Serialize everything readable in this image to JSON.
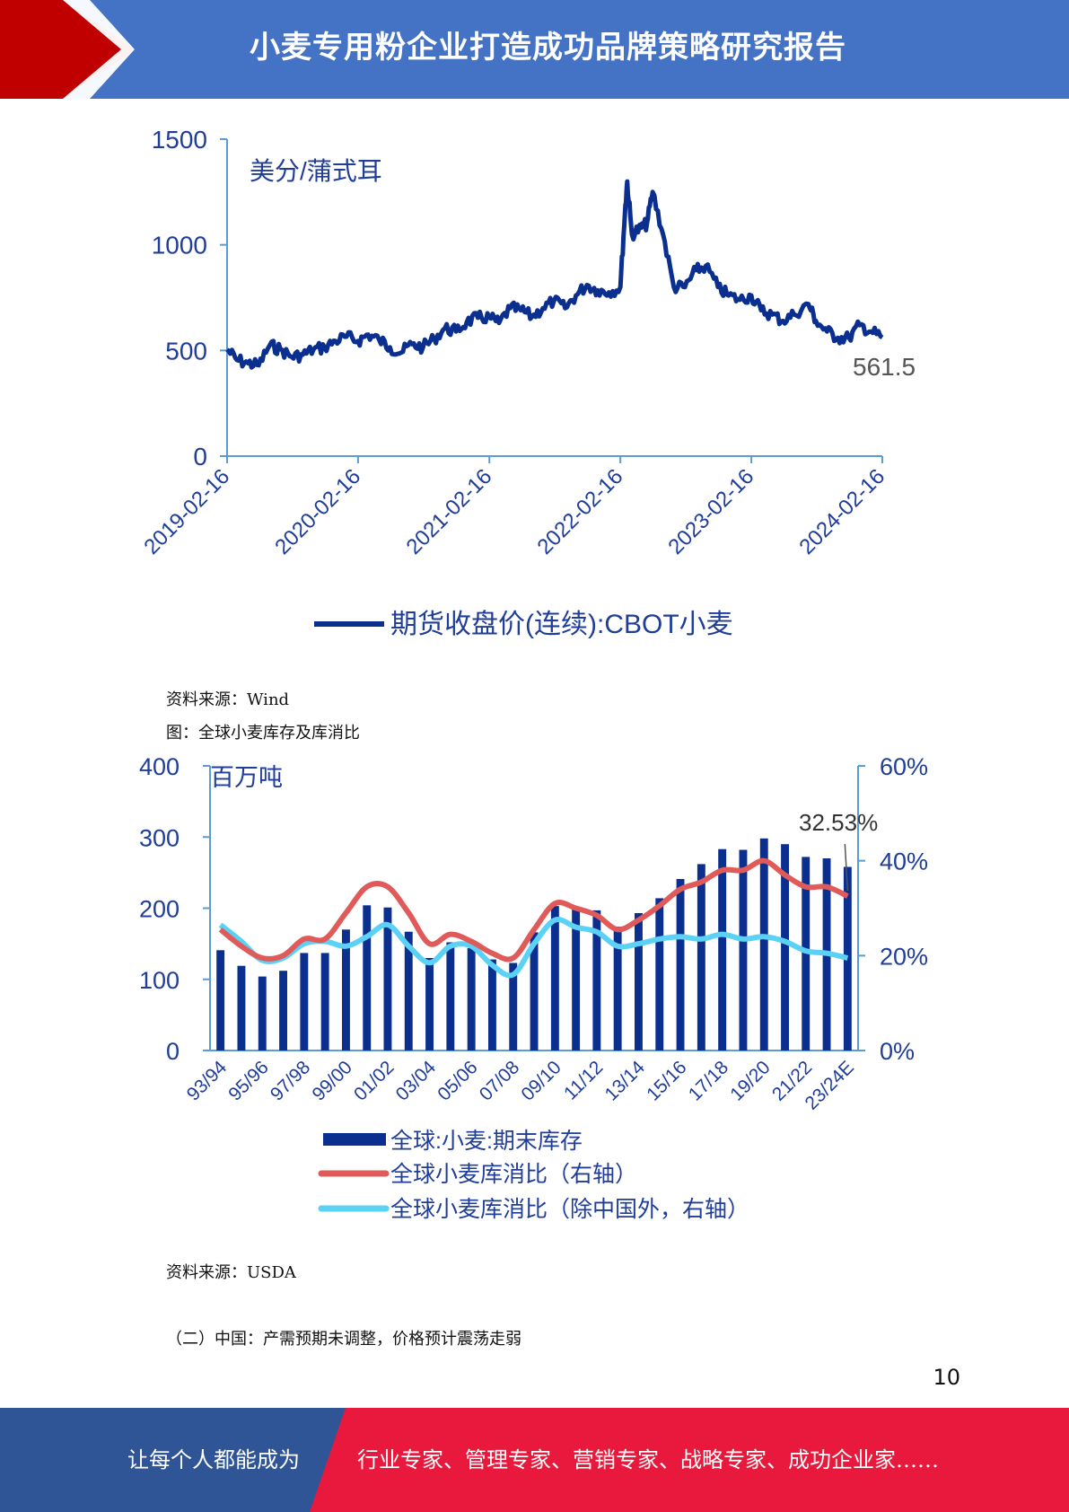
{
  "header": {
    "title": "小麦专用粉企业打造成功品牌策略研究报告"
  },
  "chart1": {
    "caption_source": "资料来源：Wind",
    "chart_data": {
      "type": "line",
      "unit_label": "美分/蒲式耳",
      "x_ticks": [
        "2019-02-16",
        "2020-02-16",
        "2021-02-16",
        "2022-02-16",
        "2023-02-16",
        "2024-02-16"
      ],
      "ylim": [
        0,
        1500
      ],
      "y_ticks": [
        0,
        500,
        1000,
        1500
      ],
      "last_value_label": "561.5",
      "series": [
        {
          "name": "期货收盘价(连续):CBOT小麦",
          "points": [
            [
              "2019-02-16",
              505
            ],
            [
              "2019-03-15",
              455
            ],
            [
              "2019-04-15",
              440
            ],
            [
              "2019-05-15",
              430
            ],
            [
              "2019-06-15",
              525
            ],
            [
              "2019-07-15",
              505
            ],
            [
              "2019-08-15",
              470
            ],
            [
              "2019-09-15",
              480
            ],
            [
              "2019-10-15",
              505
            ],
            [
              "2019-11-15",
              515
            ],
            [
              "2019-12-15",
              545
            ],
            [
              "2020-01-15",
              565
            ],
            [
              "2020-02-16",
              545
            ],
            [
              "2020-03-15",
              575
            ],
            [
              "2020-04-15",
              550
            ],
            [
              "2020-05-15",
              515
            ],
            [
              "2020-06-15",
              490
            ],
            [
              "2020-07-15",
              530
            ],
            [
              "2020-08-15",
              515
            ],
            [
              "2020-09-15",
              555
            ],
            [
              "2020-10-15",
              605
            ],
            [
              "2020-11-15",
              590
            ],
            [
              "2020-12-15",
              635
            ],
            [
              "2021-01-15",
              655
            ],
            [
              "2021-02-16",
              655
            ],
            [
              "2021-03-15",
              630
            ],
            [
              "2021-04-15",
              700
            ],
            [
              "2021-05-15",
              690
            ],
            [
              "2021-06-15",
              660
            ],
            [
              "2021-07-15",
              700
            ],
            [
              "2021-08-15",
              735
            ],
            [
              "2021-09-15",
              700
            ],
            [
              "2021-10-15",
              760
            ],
            [
              "2021-11-15",
              810
            ],
            [
              "2021-12-15",
              785
            ],
            [
              "2022-01-15",
              775
            ],
            [
              "2022-02-16",
              800
            ],
            [
              "2022-03-01",
              1160
            ],
            [
              "2022-03-07",
              1300
            ],
            [
              "2022-03-20",
              1050
            ],
            [
              "2022-04-15",
              1080
            ],
            [
              "2022-05-01",
              1100
            ],
            [
              "2022-05-17",
              1250
            ],
            [
              "2022-06-15",
              1050
            ],
            [
              "2022-07-15",
              800
            ],
            [
              "2022-08-15",
              800
            ],
            [
              "2022-09-15",
              880
            ],
            [
              "2022-10-12",
              900
            ],
            [
              "2022-11-15",
              800
            ],
            [
              "2022-12-15",
              760
            ],
            [
              "2023-01-15",
              740
            ],
            [
              "2023-02-16",
              760
            ],
            [
              "2023-03-15",
              690
            ],
            [
              "2023-04-15",
              670
            ],
            [
              "2023-05-15",
              640
            ],
            [
              "2023-06-15",
              670
            ],
            [
              "2023-07-25",
              720
            ],
            [
              "2023-08-15",
              640
            ],
            [
              "2023-09-15",
              590
            ],
            [
              "2023-10-15",
              560
            ],
            [
              "2023-11-15",
              560
            ],
            [
              "2023-12-15",
              620
            ],
            [
              "2024-01-15",
              590
            ],
            [
              "2024-02-16",
              561.5
            ]
          ]
        }
      ]
    }
  },
  "chart2": {
    "title": "图：全球小麦库存及库消比",
    "caption_source": "资料来源：USDA",
    "chart_data": {
      "type": "bar",
      "left_unit_label": "百万吨",
      "ylim_left": [
        0,
        400
      ],
      "y_ticks_left": [
        0,
        100,
        200,
        300,
        400
      ],
      "ylim_right": [
        0,
        60
      ],
      "y_ticks_right": [
        "0%",
        "20%",
        "40%",
        "60%"
      ],
      "annotation": "32.53%",
      "categories": [
        "93/94",
        "94/95",
        "95/96",
        "96/97",
        "97/98",
        "98/99",
        "99/00",
        "00/01",
        "01/02",
        "02/03",
        "03/04",
        "04/05",
        "05/06",
        "06/07",
        "07/08",
        "08/09",
        "09/10",
        "10/11",
        "11/12",
        "12/13",
        "13/14",
        "14/15",
        "15/16",
        "16/17",
        "17/18",
        "18/19",
        "19/20",
        "20/21",
        "21/22",
        "22/23",
        "23/24E"
      ],
      "x_tick_labels": [
        "93/94",
        "95/96",
        "97/98",
        "99/00",
        "01/02",
        "03/04",
        "05/06",
        "07/08",
        "09/10",
        "11/12",
        "13/14",
        "15/16",
        "17/18",
        "19/20",
        "21/22",
        "23/24E"
      ],
      "series": [
        {
          "name": "全球:小麦:期末库存",
          "kind": "bar",
          "values": [
            141,
            119,
            104,
            112,
            137,
            137,
            170,
            204,
            201,
            167,
            130,
            152,
            144,
            128,
            123,
            166,
            203,
            199,
            197,
            174,
            193,
            214,
            241,
            262,
            283,
            282,
            298,
            290,
            272,
            270,
            258
          ]
        },
        {
          "name": "全球小麦库消比（右轴）",
          "kind": "line",
          "axis": "right",
          "values": [
            25.5,
            22.0,
            19.5,
            20.0,
            23.5,
            23.5,
            29.0,
            34.5,
            34.5,
            29.0,
            22.5,
            24.5,
            23.0,
            20.5,
            19.5,
            25.5,
            31.0,
            30.0,
            28.5,
            25.5,
            27.5,
            30.5,
            34.0,
            35.5,
            38.0,
            38.0,
            40.0,
            37.0,
            34.5,
            34.5,
            32.53
          ]
        },
        {
          "name": "全球小麦库消比（除中国外，右轴）",
          "kind": "line",
          "axis": "right",
          "values": [
            26.5,
            23.0,
            19.0,
            19.5,
            22.5,
            23.0,
            22.0,
            24.0,
            26.5,
            22.0,
            18.5,
            22.0,
            22.0,
            18.0,
            16.0,
            22.5,
            27.5,
            26.0,
            25.0,
            22.0,
            22.5,
            23.5,
            24.0,
            23.5,
            24.5,
            23.5,
            24.0,
            23.0,
            21.0,
            20.5,
            19.5
          ]
        }
      ]
    }
  },
  "section": {
    "heading": "（二）中国：产需预期未调整，价格预计震荡走弱"
  },
  "page": {
    "number": "10"
  },
  "footer": {
    "left_text": "让每个人都能成为",
    "right_text": "行业专家、管理专家、营销专家、战略专家、成功企业家……"
  }
}
